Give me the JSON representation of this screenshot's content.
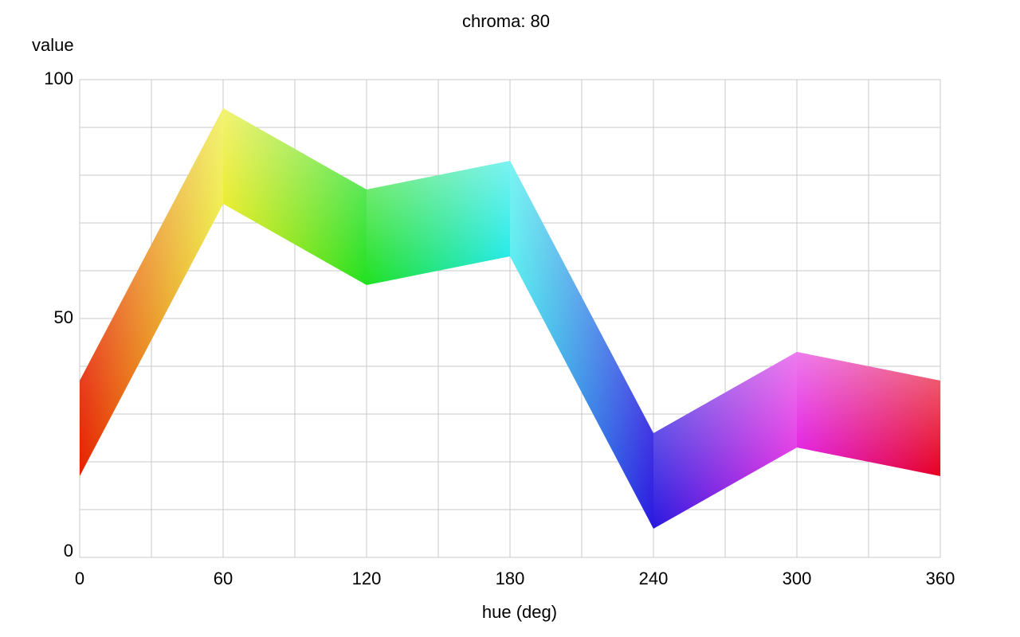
{
  "chart_data": {
    "type": "area",
    "title": "chroma: 80",
    "xlabel": "hue (deg)",
    "ylabel": "value",
    "xlim": [
      0,
      360
    ],
    "ylim": [
      0,
      100
    ],
    "xticks": [
      0,
      60,
      120,
      180,
      240,
      300,
      360
    ],
    "xtick_labels": [
      "0",
      "60",
      "120",
      "180",
      "240",
      "300",
      "360"
    ],
    "yticks": [
      0,
      50,
      100
    ],
    "ytick_labels": [
      "0",
      "50",
      "100"
    ],
    "x_grid_step": 30,
    "y_grid_step": 10,
    "grid": true,
    "legend": "none",
    "band": {
      "x": [
        0,
        60,
        120,
        180,
        240,
        300,
        360
      ],
      "upper": [
        37,
        94,
        77,
        83,
        26,
        43,
        37
      ],
      "lower": [
        17,
        74,
        57,
        63,
        6,
        23,
        17
      ],
      "upper_colors": [
        "#ff9a8a",
        "#ffff6e",
        "#6aff6e",
        "#6effff",
        "#a06dff",
        "#ff6eff",
        "#ff7e8e"
      ],
      "lower_colors": [
        "#e62000",
        "#e8e800",
        "#20e020",
        "#10e8e8",
        "#2a18e0",
        "#e010e0",
        "#e60020"
      ]
    }
  }
}
